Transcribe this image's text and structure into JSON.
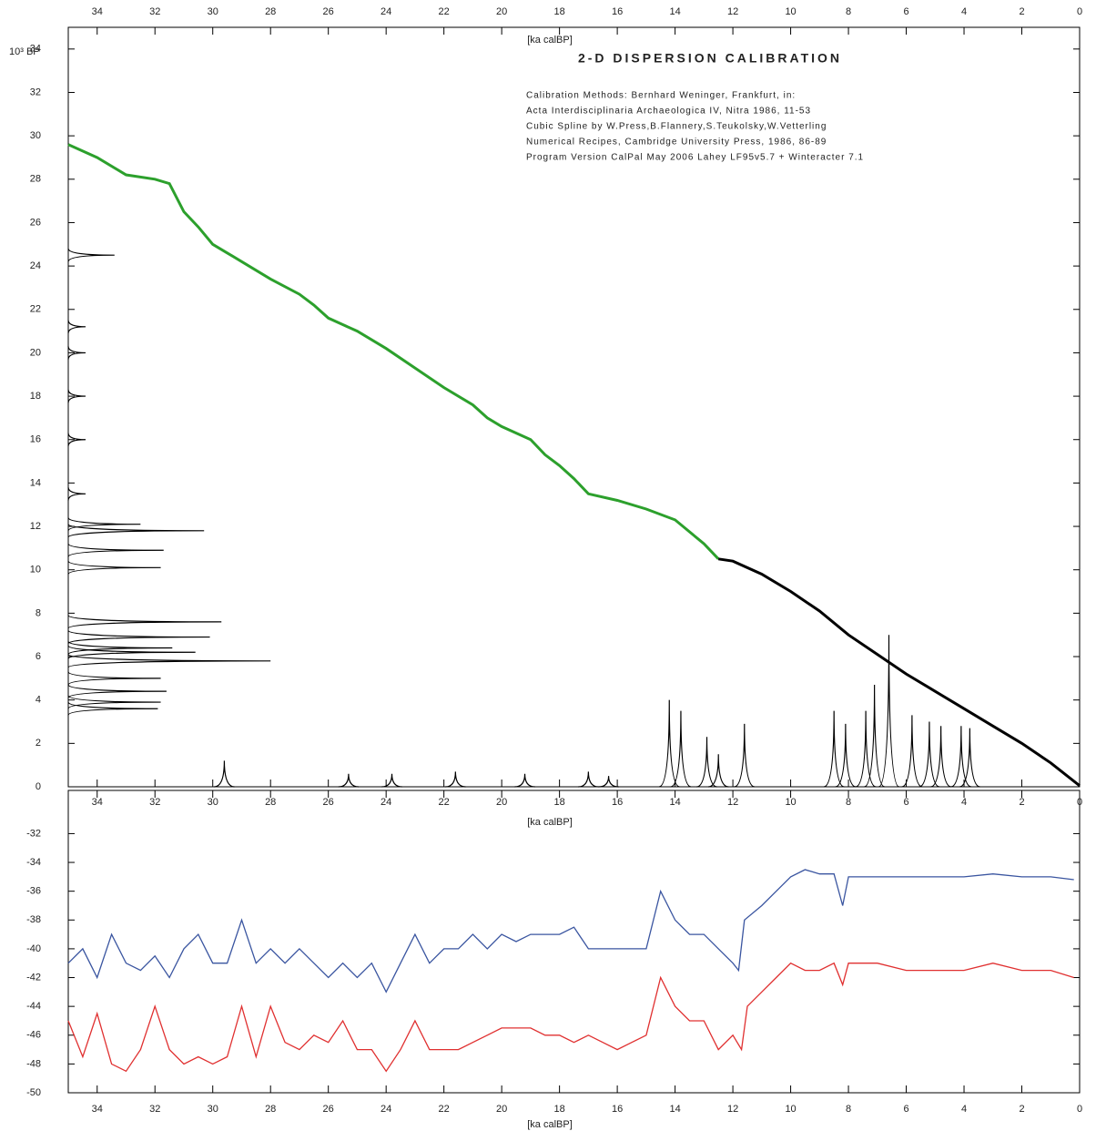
{
  "chart_data": [
    {
      "type": "line",
      "title": "2-D DISPERSION CALIBRATION",
      "x_label": "[ka calBP]",
      "y_label": "10³ BP",
      "notes": [
        "Calibration Methods:  Bernhard Weninger, Frankfurt, in:",
        "Acta Interdisciplinaria Archaeologica IV, Nitra 1986, 11-53",
        "Cubic Spline by W.Press,B.Flannery,S.Teukolsky,W.Vetterling",
        "Numerical Recipes, Cambridge University Press, 1986, 86-89",
        "Program Version CalPal May 2006 Lahey LF95v5.7 + Winteracter 7.1"
      ],
      "xlim": [
        35,
        0
      ],
      "ylim": [
        0,
        35
      ],
      "xticks": [
        34,
        32,
        30,
        28,
        26,
        24,
        22,
        20,
        18,
        16,
        14,
        12,
        10,
        8,
        6,
        4,
        2,
        0
      ],
      "yticks": [
        0,
        2,
        4,
        6,
        8,
        10,
        12,
        14,
        16,
        18,
        20,
        22,
        24,
        26,
        28,
        30,
        32,
        34
      ],
      "series": [
        {
          "color": "#2ca02c",
          "x": [
            35,
            34,
            33,
            32,
            31.5,
            31,
            30.5,
            30,
            29.5,
            29,
            28,
            27,
            26.5,
            26,
            25.5,
            25,
            24,
            23,
            22,
            21,
            20.5,
            20,
            19,
            18.5,
            18,
            17.5,
            17,
            16,
            15,
            14,
            13,
            12.5
          ],
          "values": [
            29.6,
            29.0,
            28.2,
            28.0,
            27.8,
            26.5,
            25.8,
            25.0,
            24.6,
            24.2,
            23.4,
            22.7,
            22.2,
            21.6,
            21.3,
            21.0,
            20.2,
            19.3,
            18.4,
            17.6,
            17.0,
            16.6,
            16.0,
            15.3,
            14.8,
            14.2,
            13.5,
            13.2,
            12.8,
            12.3,
            11.2,
            10.5
          ]
        },
        {
          "color": "#000000",
          "x": [
            12.5,
            12,
            11,
            10,
            9,
            8,
            7,
            6,
            5,
            4,
            3,
            2,
            1,
            0
          ],
          "values": [
            10.5,
            10.4,
            9.8,
            9.0,
            8.1,
            7.0,
            6.1,
            5.2,
            4.4,
            3.6,
            2.8,
            2.0,
            1.1,
            0.05
          ]
        }
      ],
      "x_density": {
        "color": "#000000",
        "x": [
          29.6,
          25.3,
          23.8,
          21.6,
          19.2,
          17.0,
          16.3,
          14.2,
          13.8,
          12.9,
          12.5,
          11.6,
          8.5,
          8.1,
          7.4,
          7.1,
          6.6,
          5.8,
          5.2,
          4.8,
          4.1,
          3.8
        ],
        "values": [
          1.2,
          0.6,
          0.6,
          0.7,
          0.6,
          0.7,
          0.5,
          4.0,
          3.5,
          2.3,
          1.5,
          2.9,
          3.5,
          2.9,
          3.5,
          4.7,
          7.0,
          3.3,
          3.0,
          2.8,
          2.8,
          2.7
        ]
      },
      "y_density": {
        "color": "#000000",
        "y": [
          24.5,
          21.2,
          20.0,
          18.0,
          16.0,
          13.5,
          12.1,
          11.8,
          10.9,
          10.1,
          7.6,
          6.9,
          6.4,
          6.2,
          5.8,
          5.0,
          4.4,
          3.9,
          3.6
        ],
        "values": [
          33.4,
          34.4,
          34.4,
          34.4,
          34.4,
          34.4,
          32.5,
          30.3,
          31.7,
          31.8,
          29.7,
          30.1,
          31.4,
          30.6,
          28.0,
          31.8,
          31.6,
          31.8,
          31.9
        ]
      }
    },
    {
      "type": "line",
      "x_label": "[ka calBP]",
      "xlim": [
        35,
        0
      ],
      "ylim": [
        -50,
        -29
      ],
      "xticks": [
        34,
        32,
        30,
        28,
        26,
        24,
        22,
        20,
        18,
        16,
        14,
        12,
        10,
        8,
        6,
        4,
        2,
        0
      ],
      "yticks": [
        -32,
        -34,
        -36,
        -38,
        -40,
        -42,
        -44,
        -46,
        -48,
        -50
      ],
      "ytick_color": "#3a55a0",
      "series": [
        {
          "color": "#3a55a0",
          "x": [
            35,
            34.5,
            34,
            33.5,
            33,
            32.5,
            32,
            31.5,
            31,
            30.5,
            30,
            29.5,
            29,
            28.5,
            28,
            27.5,
            27,
            26.5,
            26,
            25.5,
            25,
            24.5,
            24,
            23.5,
            23,
            22.5,
            22,
            21.5,
            21,
            20.5,
            20,
            19.5,
            19,
            18.5,
            18,
            17.5,
            17,
            16.5,
            16,
            15.5,
            15,
            14.5,
            14,
            13.5,
            13,
            12.5,
            12,
            11.8,
            11.6,
            11,
            10.5,
            10,
            9.5,
            9,
            8.5,
            8.2,
            8,
            7,
            6,
            5,
            4,
            3,
            2,
            1,
            0.2
          ],
          "values": [
            -41,
            -40,
            -42,
            -39,
            -41,
            -41.5,
            -40.5,
            -42,
            -40,
            -39,
            -41,
            -41,
            -38,
            -41,
            -40,
            -41,
            -40,
            -41,
            -42,
            -41,
            -42,
            -41,
            -43,
            -41,
            -39,
            -41,
            -40,
            -40,
            -39,
            -40,
            -39,
            -39.5,
            -39,
            -39,
            -39,
            -38.5,
            -40,
            -40,
            -40,
            -40,
            -40,
            -36,
            -38,
            -39,
            -39,
            -40,
            -41,
            -41.5,
            -38,
            -37,
            -36,
            -35,
            -34.5,
            -34.8,
            -34.8,
            -37,
            -35,
            -35,
            -35,
            -35,
            -35,
            -34.8,
            -35,
            -35,
            -35.2
          ]
        },
        {
          "color": "#e03030",
          "x": [
            35,
            34.5,
            34,
            33.5,
            33,
            32.5,
            32,
            31.5,
            31,
            30.5,
            30,
            29.5,
            29,
            28.5,
            28,
            27.5,
            27,
            26.5,
            26,
            25.5,
            25,
            24.5,
            24,
            23.5,
            23,
            22.5,
            22,
            21.5,
            21,
            20.5,
            20,
            19.5,
            19,
            18.5,
            18,
            17.5,
            17,
            16.5,
            16,
            15.5,
            15,
            14.5,
            14,
            13.5,
            13,
            12.5,
            12,
            11.7,
            11.5,
            11,
            10.5,
            10,
            9.5,
            9,
            8.5,
            8.2,
            8,
            7,
            6,
            5,
            4,
            3,
            2,
            1,
            0.2
          ],
          "values": [
            -45,
            -47.5,
            -44.5,
            -48,
            -48.5,
            -47,
            -44,
            -47,
            -48,
            -47.5,
            -48,
            -47.5,
            -44,
            -47.5,
            -44,
            -46.5,
            -47,
            -46,
            -46.5,
            -45,
            -47,
            -47,
            -48.5,
            -47,
            -45,
            -47,
            -47,
            -47,
            -46.5,
            -46,
            -45.5,
            -45.5,
            -45.5,
            -46,
            -46,
            -46.5,
            -46,
            -46.5,
            -47,
            -46.5,
            -46,
            -42,
            -44,
            -45,
            -45,
            -47,
            -46,
            -47,
            -44,
            -43,
            -42,
            -41,
            -41.5,
            -41.5,
            -41,
            -42.5,
            -41,
            -41,
            -41.5,
            -41.5,
            -41.5,
            -41,
            -41.5,
            -41.5,
            -42
          ]
        }
      ]
    }
  ]
}
